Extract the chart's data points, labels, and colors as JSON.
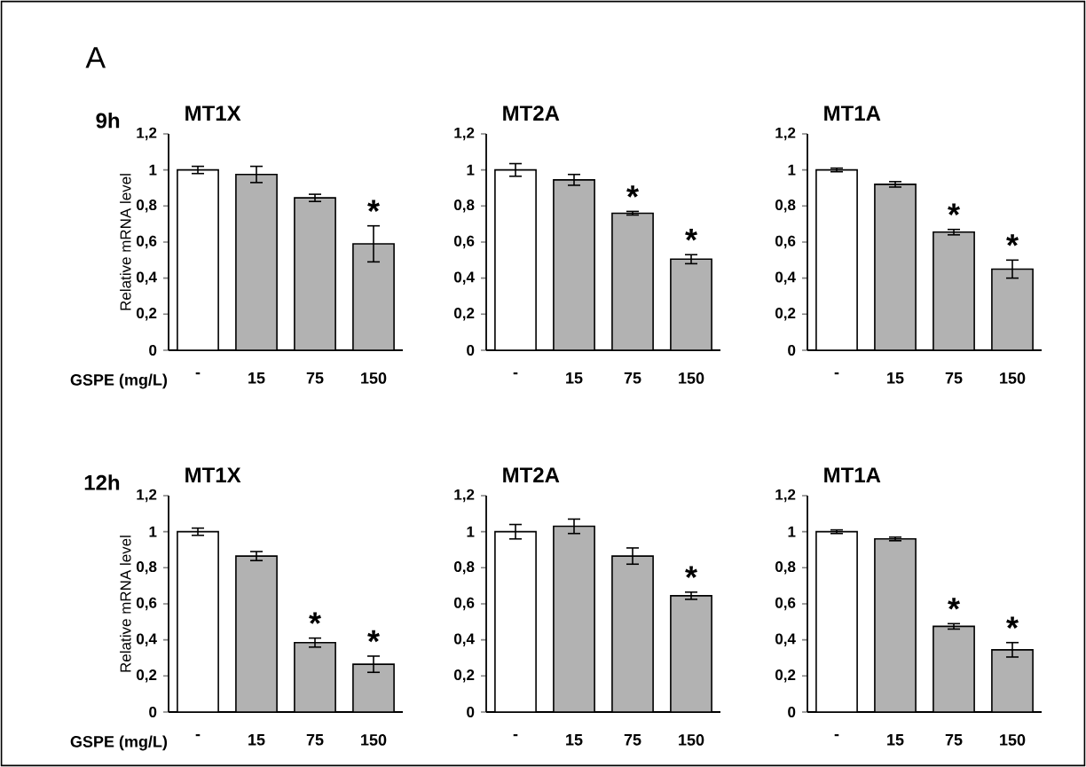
{
  "chart_data": [
    {
      "type": "bar",
      "title": "MT1X",
      "subtitle": "9h",
      "ylabel": "Relative mRNA level",
      "xlabel": "GSPE (mg/L)",
      "categories": [
        "-",
        "15",
        "75",
        "150"
      ],
      "values": [
        1.0,
        0.975,
        0.845,
        0.59
      ],
      "errors": [
        0.02,
        0.045,
        0.02,
        0.1
      ],
      "colors": [
        "#ffffff",
        "#b2b2b2",
        "#b2b2b2",
        "#b2b2b2"
      ],
      "ylim": [
        0,
        1.2
      ],
      "yticks": [
        0,
        {
          "value": 0.2,
          "label": "0,2"
        },
        {
          "value": 0.4,
          "label": "0,4"
        },
        {
          "value": 0.6,
          "label": "0,6"
        },
        {
          "value": 0.8,
          "label": "0,8"
        },
        1,
        {
          "value": 1.2,
          "label": "1,2"
        }
      ],
      "annotations": [
        "A",
        {
          "text": "*",
          "x": "150",
          "y": 0.59
        }
      ]
    },
    {
      "type": "bar",
      "title": "MT2A",
      "categories": [
        "-",
        "15",
        "75",
        "150"
      ],
      "values": [
        1.0,
        0.945,
        0.76,
        0.505
      ],
      "errors": [
        0.035,
        0.03,
        0.01,
        0.025
      ],
      "colors": [
        "#ffffff",
        "#b2b2b2",
        "#b2b2b2",
        "#b2b2b2"
      ],
      "ylim": [
        0,
        1.2
      ],
      "yticks": [
        0,
        {
          "value": 0.2,
          "label": "0,2"
        },
        {
          "value": 0.4,
          "label": "0,4"
        },
        {
          "value": 0.6,
          "label": "0,6"
        },
        {
          "value": 0.8,
          "label": "0,8"
        },
        1,
        {
          "value": 1.2,
          "label": "1,2"
        }
      ],
      "annotations": [
        {
          "text": "*",
          "x": "75",
          "y": 0.76
        },
        {
          "text": "*",
          "x": "150",
          "y": 0.505
        }
      ]
    },
    {
      "type": "bar",
      "title": "MT1A",
      "categories": [
        "-",
        "15",
        "75",
        "150"
      ],
      "values": [
        1.0,
        0.92,
        0.655,
        0.45
      ],
      "errors": [
        0.01,
        0.015,
        0.015,
        0.05
      ],
      "colors": [
        "#ffffff",
        "#b2b2b2",
        "#b2b2b2",
        "#b2b2b2"
      ],
      "ylim": [
        0,
        1.2
      ],
      "yticks": [
        0,
        {
          "value": 0.2,
          "label": "0,2"
        },
        {
          "value": 0.4,
          "label": "0,4"
        },
        {
          "value": 0.6,
          "label": "0,6"
        },
        {
          "value": 0.8,
          "label": "0,8"
        },
        1,
        {
          "value": 1.2,
          "label": "1,2"
        }
      ],
      "annotations": [
        {
          "text": "*",
          "x": "75",
          "y": 0.655
        },
        {
          "text": "*",
          "x": "150",
          "y": 0.45
        }
      ]
    },
    {
      "type": "bar",
      "title": "MT1X",
      "subtitle": "12h",
      "ylabel": "Relative mRNA level",
      "xlabel": "GSPE (mg/L)",
      "categories": [
        "-",
        "15",
        "75",
        "150"
      ],
      "values": [
        1.0,
        0.865,
        0.385,
        0.265
      ],
      "errors": [
        0.02,
        0.025,
        0.025,
        0.045
      ],
      "colors": [
        "#ffffff",
        "#b2b2b2",
        "#b2b2b2",
        "#b2b2b2"
      ],
      "ylim": [
        0,
        1.2
      ],
      "yticks": [
        0,
        {
          "value": 0.2,
          "label": "0,2"
        },
        {
          "value": 0.4,
          "label": "0,4"
        },
        {
          "value": 0.6,
          "label": "0,6"
        },
        {
          "value": 0.8,
          "label": "0,8"
        },
        1,
        {
          "value": 1.2,
          "label": "1,2"
        }
      ],
      "annotations": [
        {
          "text": "*",
          "x": "75",
          "y": 0.385
        },
        {
          "text": "*",
          "x": "150",
          "y": 0.265
        }
      ]
    },
    {
      "type": "bar",
      "title": "MT2A",
      "categories": [
        "-",
        "15",
        "75",
        "150"
      ],
      "values": [
        1.0,
        1.03,
        0.865,
        0.645
      ],
      "errors": [
        0.04,
        0.04,
        0.045,
        0.02
      ],
      "colors": [
        "#ffffff",
        "#b2b2b2",
        "#b2b2b2",
        "#b2b2b2"
      ],
      "ylim": [
        0,
        1.2
      ],
      "yticks": [
        0,
        {
          "value": 0.2,
          "label": "0,2"
        },
        {
          "value": 0.4,
          "label": "0,4"
        },
        {
          "value": 0.6,
          "label": "0,6"
        },
        {
          "value": 0.8,
          "label": "0,8"
        },
        1,
        {
          "value": 1.2,
          "label": "1,2"
        }
      ],
      "annotations": [
        {
          "text": "*",
          "x": "150",
          "y": 0.645
        }
      ]
    },
    {
      "type": "bar",
      "title": "MT1A",
      "categories": [
        "-",
        "15",
        "75",
        "150"
      ],
      "values": [
        1.0,
        0.96,
        0.475,
        0.345
      ],
      "errors": [
        0.01,
        0.01,
        0.015,
        0.04
      ],
      "colors": [
        "#ffffff",
        "#b2b2b2",
        "#b2b2b2",
        "#b2b2b2"
      ],
      "ylim": [
        0,
        1.2
      ],
      "yticks": [
        0,
        {
          "value": 0.2,
          "label": "0,2"
        },
        {
          "value": 0.4,
          "label": "0,4"
        },
        {
          "value": 0.6,
          "label": "0,6"
        },
        {
          "value": 0.8,
          "label": "0,8"
        },
        1,
        {
          "value": 1.2,
          "label": "1,2"
        }
      ],
      "annotations": [
        {
          "text": "*",
          "x": "75",
          "y": 0.475
        },
        {
          "text": "*",
          "x": "150",
          "y": 0.345
        }
      ]
    }
  ]
}
